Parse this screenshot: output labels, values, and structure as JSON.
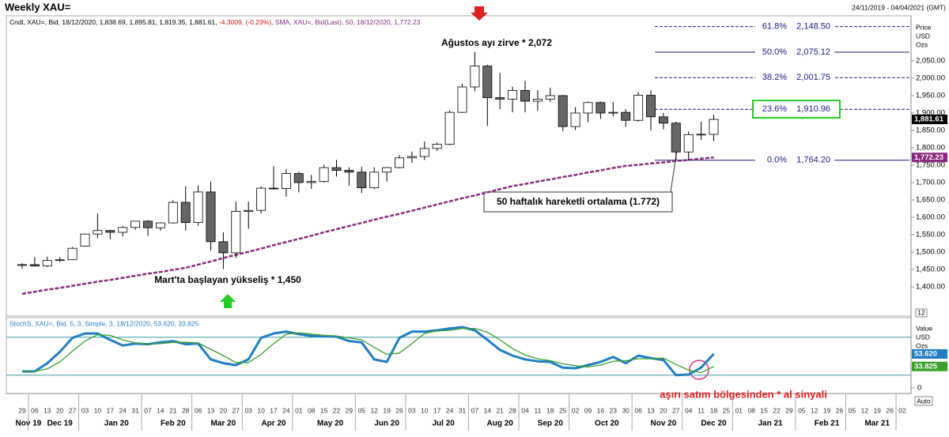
{
  "chart_data": {
    "type": "candlestick",
    "title": "Weekly XAU=",
    "date_range": "24/11/2019 - 04/04/2021 (GMT)",
    "legend_text": "Cndl, XAU=, Bid, 18/12/2020, 1,838.69, 1,895.81, 1,819.35, 1,881.61,",
    "change_text": "-4.3009, (-0.23%),",
    "sma_text": "SMA, XAU=, Bid(Last),  50, 18/12/2020, 1,772.23",
    "axis_unit": [
      "Price",
      "USD",
      "Ozs"
    ],
    "x_labels": [
      "29",
      "06",
      "13",
      "20",
      "27",
      "03",
      "10",
      "17",
      "24",
      "31",
      "07",
      "14",
      "21",
      "28",
      "06",
      "13",
      "20",
      "27",
      "03",
      "10",
      "17",
      "24",
      "01",
      "08",
      "15",
      "22",
      "29",
      "05",
      "12",
      "19",
      "26",
      "03",
      "10",
      "17",
      "24",
      "31",
      "07",
      "14",
      "21",
      "28",
      "04",
      "11",
      "18",
      "25",
      "02",
      "09",
      "16",
      "23",
      "30",
      "06",
      "13",
      "20",
      "27",
      "04",
      "11",
      "18",
      "25",
      "01",
      "08",
      "15",
      "22",
      "29",
      "05",
      "12",
      "19",
      "26",
      "05",
      "12",
      "19",
      "26",
      "02"
    ],
    "months": [
      "Nov 19",
      "Dec 19",
      "Jan 20",
      "Feb 20",
      "Mar 20",
      "Apr 20",
      "May 20",
      "Jun 20",
      "Jul 20",
      "Aug 20",
      "Sep 20",
      "Oct 20",
      "Nov 20",
      "Dec 20",
      "Jan 21",
      "Feb 21",
      "Mar 21"
    ],
    "open": [
      1462,
      1464,
      1460,
      1476,
      1478,
      1517,
      1552,
      1562,
      1557,
      1571,
      1589,
      1570,
      1584,
      1643,
      1585,
      1673,
      1530,
      1498,
      1617,
      1620,
      1684,
      1683,
      1726,
      1700,
      1703,
      1743,
      1735,
      1730,
      1685,
      1730,
      1743,
      1771,
      1775,
      1798,
      1810,
      1902,
      1975,
      2035,
      1944,
      1940,
      1965,
      1934,
      1940,
      1950,
      1861,
      1900,
      1930,
      1900,
      1902,
      1879,
      1951,
      1889,
      1871,
      1788,
      1838,
      1838.69
    ],
    "high": [
      1468,
      1485,
      1487,
      1486,
      1515,
      1553,
      1611,
      1564,
      1575,
      1589,
      1592,
      1586,
      1649,
      1689,
      1692,
      1703,
      1557,
      1645,
      1645,
      1689,
      1747,
      1739,
      1731,
      1722,
      1751,
      1765,
      1744,
      1745,
      1744,
      1745,
      1779,
      1789,
      1818,
      1815,
      1907,
      1984,
      2075,
      2039,
      2015,
      1976,
      1992,
      1966,
      1973,
      1952,
      1917,
      1933,
      1933,
      1931,
      1911,
      1960,
      1965,
      1900,
      1875,
      1847,
      1875,
      1895.81
    ],
    "low": [
      1452,
      1459,
      1457,
      1472,
      1477,
      1516,
      1540,
      1537,
      1545,
      1564,
      1547,
      1562,
      1582,
      1562,
      1576,
      1504,
      1451,
      1483,
      1567,
      1611,
      1680,
      1660,
      1672,
      1682,
      1700,
      1717,
      1691,
      1670,
      1681,
      1703,
      1741,
      1757,
      1765,
      1791,
      1807,
      1900,
      1963,
      1863,
      1911,
      1902,
      1902,
      1906,
      1931,
      1848,
      1851,
      1874,
      1883,
      1890,
      1860,
      1875,
      1850,
      1853,
      1765,
      1764,
      1823,
      1819.35
    ],
    "close": [
      1464,
      1460,
      1476,
      1478,
      1511,
      1552,
      1562,
      1557,
      1571,
      1589,
      1570,
      1584,
      1643,
      1585,
      1673,
      1530,
      1498,
      1617,
      1620,
      1684,
      1683,
      1726,
      1700,
      1703,
      1743,
      1735,
      1730,
      1685,
      1730,
      1743,
      1771,
      1775,
      1798,
      1810,
      1902,
      1975,
      2035,
      1944,
      1940,
      1965,
      1934,
      1940,
      1950,
      1861,
      1900,
      1930,
      1900,
      1902,
      1879,
      1951,
      1889,
      1871,
      1788,
      1838,
      1839,
      1881.61
    ],
    "up_color": "#ffffff",
    "down_color": "#666666",
    "sma": {
      "color": "#8b2a7e",
      "values": [
        1380,
        1386,
        1392,
        1397,
        1403,
        1409,
        1415,
        1420,
        1426,
        1432,
        1438,
        1443,
        1449,
        1455,
        1464,
        1473,
        1483,
        1492,
        1501,
        1510,
        1520,
        1529,
        1538,
        1547,
        1557,
        1566,
        1575,
        1584,
        1593,
        1602,
        1610,
        1619,
        1628,
        1637,
        1646,
        1655,
        1663,
        1672,
        1681,
        1690,
        1696,
        1703,
        1709,
        1716,
        1722,
        1729,
        1735,
        1742,
        1748,
        1751,
        1755,
        1758,
        1762,
        1765,
        1769,
        1772.23
      ]
    },
    "last_price": {
      "value": 1881.61,
      "label": "1,881.61"
    },
    "last_sma": {
      "value": 1772.23,
      "label": "1,772.23"
    },
    "ylim": [
      1316,
      2175
    ],
    "yticks": [
      {
        "value": 1400,
        "label": "1,400.00"
      },
      {
        "value": 1450,
        "label": "1,450.00"
      },
      {
        "value": 1500,
        "label": "1,500.00"
      },
      {
        "value": 1550,
        "label": "1,550.00"
      },
      {
        "value": 1600,
        "label": "1,600.00"
      },
      {
        "value": 1650,
        "label": "1,650.00"
      },
      {
        "value": 1700,
        "label": "1,700.00"
      },
      {
        "value": 1750,
        "label": "1,750.00"
      },
      {
        "value": 1800,
        "label": "1,800.00"
      },
      {
        "value": 1850,
        "label": "1,850.00"
      },
      {
        "value": 1900,
        "label": "1,900.00"
      },
      {
        "value": 1950,
        "label": "1,950.00"
      },
      {
        "value": 2000,
        "label": "2,000.00"
      },
      {
        "value": 2050,
        "label": "2,050.00"
      }
    ],
    "fibonacci": [
      {
        "label": "61.8%",
        "value": 2148.5,
        "value_label": "2,148.50",
        "dashed": true
      },
      {
        "label": "50.0%",
        "value": 2075.12,
        "value_label": "2,075.12",
        "dashed": false
      },
      {
        "label": "38.2%",
        "value": 2001.75,
        "value_label": "2,001.75",
        "dashed": true
      },
      {
        "label": "23.6%",
        "value": 1910.96,
        "value_label": "1,910.96",
        "dashed": true,
        "highlight": true
      },
      {
        "label": "0.0%",
        "value": 1764.2,
        "value_label": "1,764.20",
        "dashed": false
      }
    ],
    "annotations": {
      "peak": "Ağustos ayı zirve * 2,072",
      "start": "Mart'ta başlayan yükseliş * 1,450",
      "sma_note": "50 haftalık hareketli ortalama (1.772)",
      "signal": "aşırı satım bölgesinden * al sinyali"
    },
    "scale_box": "12",
    "auto_box": "Auto",
    "stoch": {
      "title": "StochS, XAU=, Bid,  5, 3, Simple, 3, 18/12/2020, 53.620, 33.825",
      "axis_unit": [
        "Value",
        "USD",
        "Ozs"
      ],
      "ylim": [
        -9,
        111
      ],
      "yticks": [
        0
      ],
      "levels": [
        80,
        20
      ],
      "level_color": "#3c9aa6",
      "series": [
        {
          "color": "#1f7ec4",
          "values": [
            26,
            26,
            39,
            57,
            79,
            86,
            86,
            76,
            67,
            70,
            69,
            72,
            74,
            69,
            70,
            45,
            39,
            36,
            45,
            79,
            86,
            89,
            85,
            82,
            82,
            81,
            74,
            72,
            45,
            41,
            79,
            89,
            89,
            91,
            94,
            96,
            91,
            76,
            60,
            51,
            45,
            42,
            41,
            32,
            31,
            36,
            41,
            49,
            39,
            51,
            47,
            44,
            20,
            21,
            32,
            53.62
          ],
          "last_label": "53.620"
        },
        {
          "color": "#3aa02a",
          "values": [
            26,
            26,
            30,
            41,
            58,
            74,
            84,
            83,
            76,
            71,
            69,
            70,
            72,
            72,
            71,
            61,
            51,
            40,
            40,
            53,
            70,
            85,
            87,
            85,
            83,
            82,
            79,
            76,
            64,
            53,
            55,
            70,
            86,
            90,
            91,
            94,
            94,
            88,
            76,
            62,
            52,
            46,
            43,
            38,
            35,
            33,
            36,
            42,
            43,
            46,
            46,
            47,
            37,
            28,
            24,
            33.825
          ],
          "last_label": "33.825"
        }
      ]
    }
  }
}
